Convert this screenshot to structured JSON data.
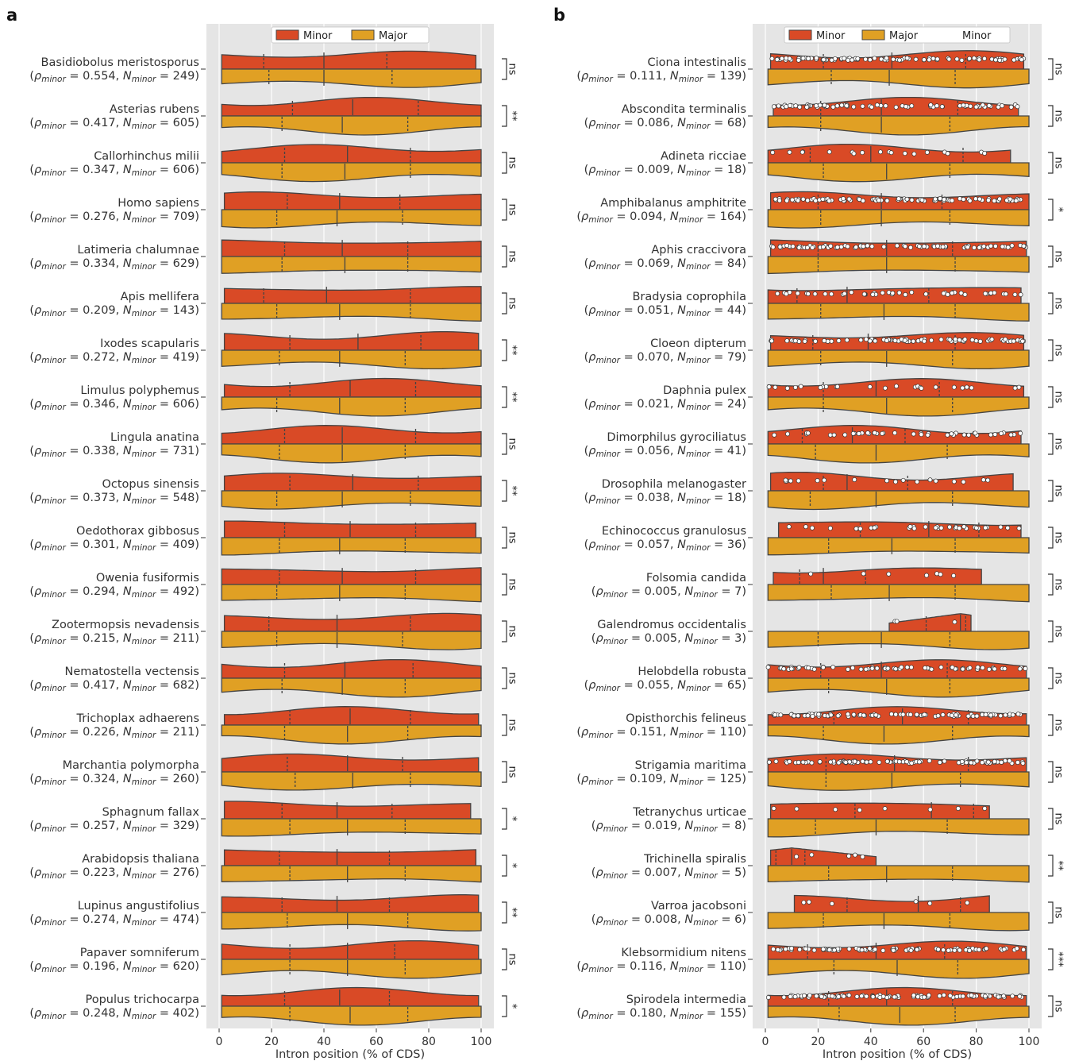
{
  "chart_data": [
    {
      "panel": "a",
      "type": "violin",
      "xlabel": "Intron position (% of CDS)",
      "xlim": [
        0,
        100
      ],
      "xticks": [
        0,
        20,
        40,
        60,
        80,
        100
      ],
      "grid": true,
      "legend": {
        "placement": "top-center",
        "entries": [
          "Minor",
          "Major"
        ]
      },
      "colors": {
        "minor": "#d94a26",
        "major": "#e0a024",
        "background": "#e5e5e5",
        "outline": "#444444"
      },
      "rows": [
        {
          "species": "Basidiobolus meristosporus",
          "rho": "0.554",
          "n": "249",
          "sig": "ns",
          "minor_range": [
            1,
            98
          ],
          "major_range": [
            1,
            100
          ],
          "minor_q": [
            17,
            40,
            64
          ],
          "major_q": [
            19,
            40,
            66
          ]
        },
        {
          "species": "Asterias rubens",
          "rho": "0.417",
          "n": "605",
          "sig": "**",
          "minor_range": [
            1,
            100
          ],
          "major_range": [
            1,
            100
          ],
          "minor_q": [
            28,
            51,
            76
          ],
          "major_q": [
            24,
            47,
            72
          ]
        },
        {
          "species": "Callorhinchus milii",
          "rho": "0.347",
          "n": "606",
          "sig": "ns",
          "minor_range": [
            1,
            100
          ],
          "major_range": [
            1,
            100
          ],
          "minor_q": [
            25,
            49,
            73
          ],
          "major_q": [
            24,
            48,
            73
          ]
        },
        {
          "species": "Homo sapiens",
          "rho": "0.276",
          "n": "709",
          "sig": "ns",
          "minor_range": [
            2,
            100
          ],
          "major_range": [
            1,
            100
          ],
          "minor_q": [
            26,
            46,
            69
          ],
          "major_q": [
            22,
            45,
            70
          ]
        },
        {
          "species": "Latimeria chalumnae",
          "rho": "0.334",
          "n": "629",
          "sig": "ns",
          "minor_range": [
            1,
            100
          ],
          "major_range": [
            1,
            100
          ],
          "minor_q": [
            25,
            47,
            72
          ],
          "major_q": [
            24,
            48,
            72
          ]
        },
        {
          "species": "Apis mellifera",
          "rho": "0.209",
          "n": "143",
          "sig": "ns",
          "minor_range": [
            2,
            100
          ],
          "major_range": [
            1,
            100
          ],
          "minor_q": [
            17,
            41,
            73
          ],
          "major_q": [
            22,
            46,
            73
          ]
        },
        {
          "species": "Ixodes scapularis",
          "rho": "0.272",
          "n": "419",
          "sig": "**",
          "minor_range": [
            2,
            99
          ],
          "major_range": [
            1,
            100
          ],
          "minor_q": [
            27,
            53,
            77
          ],
          "major_q": [
            23,
            46,
            71
          ]
        },
        {
          "species": "Limulus polyphemus",
          "rho": "0.346",
          "n": "606",
          "sig": "**",
          "minor_range": [
            2,
            100
          ],
          "major_range": [
            1,
            100
          ],
          "minor_q": [
            27,
            50,
            75
          ],
          "major_q": [
            22,
            46,
            71
          ]
        },
        {
          "species": "Lingula anatina",
          "rho": "0.338",
          "n": "731",
          "sig": "ns",
          "minor_range": [
            1,
            100
          ],
          "major_range": [
            1,
            100
          ],
          "minor_q": [
            25,
            47,
            75
          ],
          "major_q": [
            23,
            47,
            71
          ]
        },
        {
          "species": "Octopus sinensis",
          "rho": "0.373",
          "n": "548",
          "sig": "**",
          "minor_range": [
            2,
            100
          ],
          "major_range": [
            1,
            100
          ],
          "minor_q": [
            27,
            51,
            76
          ],
          "major_q": [
            22,
            47,
            73
          ]
        },
        {
          "species": "Oedothorax gibbosus",
          "rho": "0.301",
          "n": "409",
          "sig": "ns",
          "minor_range": [
            2,
            98
          ],
          "major_range": [
            1,
            100
          ],
          "minor_q": [
            25,
            50,
            75
          ],
          "major_q": [
            23,
            46,
            71
          ]
        },
        {
          "species": "Owenia fusiformis",
          "rho": "0.294",
          "n": "492",
          "sig": "ns",
          "minor_range": [
            1,
            100
          ],
          "major_range": [
            1,
            100
          ],
          "minor_q": [
            23,
            47,
            75
          ],
          "major_q": [
            22,
            46,
            71
          ]
        },
        {
          "species": "Zootermopsis nevadensis",
          "rho": "0.215",
          "n": "211",
          "sig": "ns",
          "minor_range": [
            2,
            100
          ],
          "major_range": [
            1,
            100
          ],
          "minor_q": [
            19,
            45,
            73
          ],
          "major_q": [
            22,
            45,
            70
          ]
        },
        {
          "species": "Nematostella vectensis",
          "rho": "0.417",
          "n": "682",
          "sig": "ns",
          "minor_range": [
            1,
            100
          ],
          "major_range": [
            1,
            100
          ],
          "minor_q": [
            25,
            48,
            74
          ],
          "major_q": [
            24,
            47,
            71
          ]
        },
        {
          "species": "Trichoplax adhaerens",
          "rho": "0.226",
          "n": "211",
          "sig": "ns",
          "minor_range": [
            2,
            99
          ],
          "major_range": [
            1,
            100
          ],
          "minor_q": [
            27,
            50,
            73
          ],
          "major_q": [
            25,
            49,
            72
          ]
        },
        {
          "species": "Marchantia polymorpha",
          "rho": "0.324",
          "n": "260",
          "sig": "ns",
          "minor_range": [
            1,
            99
          ],
          "major_range": [
            1,
            100
          ],
          "minor_q": [
            26,
            49,
            70
          ],
          "major_q": [
            29,
            51,
            73
          ]
        },
        {
          "species": "Sphagnum fallax",
          "rho": "0.257",
          "n": "329",
          "sig": "*",
          "minor_range": [
            2,
            96
          ],
          "major_range": [
            1,
            100
          ],
          "minor_q": [
            24,
            45,
            66
          ],
          "major_q": [
            27,
            49,
            71
          ]
        },
        {
          "species": "Arabidopsis thaliana",
          "rho": "0.223",
          "n": "276",
          "sig": "*",
          "minor_range": [
            2,
            98
          ],
          "major_range": [
            1,
            100
          ],
          "minor_q": [
            23,
            45,
            65
          ],
          "major_q": [
            27,
            49,
            71
          ]
        },
        {
          "species": "Lupinus angustifolius",
          "rho": "0.274",
          "n": "474",
          "sig": "**",
          "minor_range": [
            1,
            99
          ],
          "major_range": [
            1,
            100
          ],
          "minor_q": [
            24,
            45,
            65
          ],
          "major_q": [
            26,
            49,
            72
          ]
        },
        {
          "species": "Papaver somniferum",
          "rho": "0.196",
          "n": "620",
          "sig": "ns",
          "minor_range": [
            1,
            99
          ],
          "major_range": [
            1,
            100
          ],
          "minor_q": [
            27,
            49,
            67
          ],
          "major_q": [
            27,
            49,
            71
          ]
        },
        {
          "species": "Populus trichocarpa",
          "rho": "0.248",
          "n": "402",
          "sig": "*",
          "minor_range": [
            1,
            99
          ],
          "major_range": [
            1,
            100
          ],
          "minor_q": [
            25,
            46,
            65
          ],
          "major_q": [
            27,
            50,
            72
          ]
        }
      ]
    },
    {
      "panel": "b",
      "type": "violin",
      "xlabel": "Intron position (% of CDS)",
      "xlim": [
        0,
        100
      ],
      "xticks": [
        0,
        20,
        40,
        60,
        80,
        100
      ],
      "grid": true,
      "legend": {
        "placement": "top-center",
        "entries": [
          "Minor",
          "Major",
          "Minor"
        ]
      },
      "colors": {
        "minor": "#d94a26",
        "major": "#e0a024",
        "background": "#e5e5e5",
        "outline": "#444444",
        "points": "#ffffff"
      },
      "rows": [
        {
          "species": "Ciona intestinalis",
          "rho": "0.111",
          "n": "139",
          "sig": "ns",
          "minor_range": [
            2,
            98
          ],
          "major_range": [
            1,
            100
          ],
          "minor_q": [
            22,
            48,
            76
          ],
          "major_q": [
            25,
            47,
            72
          ]
        },
        {
          "species": "Abscondita terminalis",
          "rho": "0.086",
          "n": "68",
          "sig": "ns",
          "minor_range": [
            3,
            96
          ],
          "major_range": [
            1,
            100
          ],
          "minor_q": [
            21,
            44,
            73
          ],
          "major_q": [
            21,
            44,
            70
          ]
        },
        {
          "species": "Adineta ricciae",
          "rho": "0.009",
          "n": "18",
          "sig": "ns",
          "minor_range": [
            1,
            93
          ],
          "major_range": [
            1,
            100
          ],
          "minor_q": [
            17,
            40,
            75
          ],
          "major_q": [
            22,
            46,
            70
          ]
        },
        {
          "species": "Amphibalanus amphitrite",
          "rho": "0.094",
          "n": "164",
          "sig": "*",
          "minor_range": [
            2,
            100
          ],
          "major_range": [
            1,
            100
          ],
          "minor_q": [
            20,
            44,
            67
          ],
          "major_q": [
            21,
            44,
            70
          ]
        },
        {
          "species": "Aphis craccivora",
          "rho": "0.069",
          "n": "84",
          "sig": "ns",
          "minor_range": [
            2,
            99
          ],
          "major_range": [
            1,
            100
          ],
          "minor_q": [
            20,
            46,
            71
          ],
          "major_q": [
            20,
            46,
            72
          ]
        },
        {
          "species": "Bradysia coprophila",
          "rho": "0.051",
          "n": "44",
          "sig": "ns",
          "minor_range": [
            1,
            97
          ],
          "major_range": [
            1,
            100
          ],
          "minor_q": [
            12,
            31,
            62
          ],
          "major_q": [
            21,
            45,
            72
          ]
        },
        {
          "species": "Cloeon dipterum",
          "rho": "0.070",
          "n": "79",
          "sig": "ns",
          "minor_range": [
            2,
            98
          ],
          "major_range": [
            1,
            100
          ],
          "minor_q": [
            18,
            39,
            72
          ],
          "major_q": [
            21,
            46,
            71
          ]
        },
        {
          "species": "Daphnia pulex",
          "rho": "0.021",
          "n": "24",
          "sig": "ns",
          "minor_range": [
            1,
            98
          ],
          "major_range": [
            1,
            100
          ],
          "minor_q": [
            22,
            42,
            66
          ],
          "major_q": [
            22,
            46,
            71
          ]
        },
        {
          "species": "Dimorphilus gyrociliatus",
          "rho": "0.056",
          "n": "41",
          "sig": "ns",
          "minor_range": [
            1,
            97
          ],
          "major_range": [
            1,
            100
          ],
          "minor_q": [
            14,
            33,
            53
          ],
          "major_q": [
            19,
            42,
            69
          ]
        },
        {
          "species": "Drosophila melanogaster",
          "rho": "0.038",
          "n": "18",
          "sig": "ns",
          "minor_range": [
            2,
            94
          ],
          "major_range": [
            1,
            100
          ],
          "minor_q": [
            22,
            31,
            54
          ],
          "major_q": [
            17,
            42,
            71
          ]
        },
        {
          "species": "Echinococcus granulosus",
          "rho": "0.057",
          "n": "36",
          "sig": "ns",
          "minor_range": [
            5,
            97
          ],
          "major_range": [
            1,
            100
          ],
          "minor_q": [
            36,
            62,
            81
          ],
          "major_q": [
            24,
            48,
            72
          ]
        },
        {
          "species": "Folsomia candida",
          "rho": "0.005",
          "n": "7",
          "sig": "ns",
          "minor_range": [
            3,
            82
          ],
          "major_range": [
            1,
            100
          ],
          "minor_q": [
            13,
            22,
            38
          ],
          "major_q": [
            25,
            47,
            72
          ]
        },
        {
          "species": "Galendromus occidentalis",
          "rho": "0.005",
          "n": "3",
          "sig": "ns",
          "minor_range": [
            47,
            78
          ],
          "major_range": [
            1,
            100
          ],
          "minor_q": [
            61,
            74,
            76
          ],
          "major_q": [
            20,
            44,
            70
          ]
        },
        {
          "species": "Helobdella robusta",
          "rho": "0.055",
          "n": "65",
          "sig": "ns",
          "minor_range": [
            1,
            99
          ],
          "major_range": [
            1,
            100
          ],
          "minor_q": [
            21,
            44,
            69
          ],
          "major_q": [
            24,
            46,
            70
          ]
        },
        {
          "species": "Opisthorchis felineus",
          "rho": "0.151",
          "n": "110",
          "sig": "ns",
          "minor_range": [
            1,
            99
          ],
          "major_range": [
            1,
            100
          ],
          "minor_q": [
            26,
            52,
            77
          ],
          "major_q": [
            22,
            45,
            71
          ]
        },
        {
          "species": "Strigamia maritima",
          "rho": "0.109",
          "n": "125",
          "sig": "ns",
          "minor_range": [
            1,
            99
          ],
          "major_range": [
            1,
            100
          ],
          "minor_q": [
            23,
            49,
            77
          ],
          "major_q": [
            23,
            48,
            74
          ]
        },
        {
          "species": "Tetranychus urticae",
          "rho": "0.019",
          "n": "8",
          "sig": "ns",
          "minor_range": [
            2,
            85
          ],
          "major_range": [
            1,
            100
          ],
          "minor_q": [
            34,
            63,
            79
          ],
          "major_q": [
            19,
            42,
            69
          ]
        },
        {
          "species": "Trichinella spiralis",
          "rho": "0.007",
          "n": "5",
          "sig": "**",
          "minor_range": [
            2,
            42
          ],
          "major_range": [
            1,
            100
          ],
          "minor_q": [
            4,
            10,
            15
          ],
          "major_q": [
            24,
            46,
            71
          ]
        },
        {
          "species": "Varroa jacobsoni",
          "rho": "0.008",
          "n": "6",
          "sig": "ns",
          "minor_range": [
            11,
            85
          ],
          "major_range": [
            1,
            100
          ],
          "minor_q": [
            31,
            58,
            74
          ],
          "major_q": [
            22,
            45,
            70
          ]
        },
        {
          "species": "Klebsormidium nitens",
          "rho": "0.116",
          "n": "110",
          "sig": "***",
          "minor_range": [
            1,
            99
          ],
          "major_range": [
            1,
            100
          ],
          "minor_q": [
            16,
            42,
            68
          ],
          "major_q": [
            26,
            50,
            73
          ]
        },
        {
          "species": "Spirodela intermedia",
          "rho": "0.180",
          "n": "155",
          "sig": "ns",
          "minor_range": [
            1,
            99
          ],
          "major_range": [
            1,
            100
          ],
          "minor_q": [
            24,
            46,
            71
          ],
          "major_q": [
            28,
            51,
            72
          ]
        }
      ]
    }
  ],
  "figure": {
    "panel_labels": [
      "a",
      "b"
    ],
    "rho_label": "ρ",
    "n_label": "N",
    "subscript": "minor",
    "stat_separator": ",",
    "equals": "="
  }
}
